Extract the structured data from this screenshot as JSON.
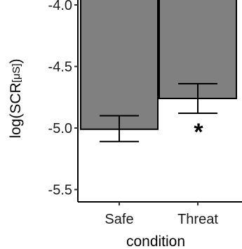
{
  "chart_data": {
    "type": "bar",
    "categories": [
      "Safe",
      "Threat"
    ],
    "values": [
      -5.01,
      -4.76
    ],
    "error_low": [
      -5.11,
      -4.88
    ],
    "error_high": [
      -4.9,
      -4.64
    ],
    "ylim": [
      -5.6,
      -3.96
    ],
    "yticks": [
      -4.0,
      -4.5,
      -5.0,
      -5.5
    ],
    "ytick_labels": [
      "-4.0",
      "-4.5",
      "-5.0",
      "-5.5"
    ],
    "ylabel_main": "log(SCR",
    "ylabel_sub": "[μS]",
    "ylabel_close": ")",
    "xlabel": "condition",
    "annotations": [
      {
        "category": "Threat",
        "text": "*"
      }
    ],
    "bar_color": "#808080",
    "grid": false,
    "legend": "none"
  }
}
